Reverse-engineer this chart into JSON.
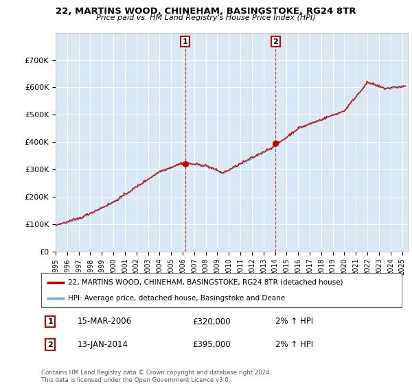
{
  "title1": "22, MARTINS WOOD, CHINEHAM, BASINGSTOKE, RG24 8TR",
  "title2": "Price paid vs. HM Land Registry's House Price Index (HPI)",
  "legend_line1": "22, MARTINS WOOD, CHINEHAM, BASINGSTOKE, RG24 8TR (detached house)",
  "legend_line2": "HPI: Average price, detached house, Basingstoke and Deane",
  "annotation1": {
    "num": "1",
    "date": "15-MAR-2006",
    "price": "£320,000",
    "hpi": "2% ↑ HPI"
  },
  "annotation2": {
    "num": "2",
    "date": "13-JAN-2014",
    "price": "£395,000",
    "hpi": "2% ↑ HPI"
  },
  "footer": "Contains HM Land Registry data © Crown copyright and database right 2024.\nThis data is licensed under the Open Government Licence v3.0.",
  "ylim": [
    0,
    800000
  ],
  "yticks": [
    0,
    100000,
    200000,
    300000,
    400000,
    500000,
    600000,
    700000
  ],
  "xlim_start": 1995,
  "xlim_end": 2025.5,
  "bg_color": "#d9e8f5",
  "line_color_red": "#cc0000",
  "line_color_blue": "#7aadcc",
  "marker_color": "#cc0000",
  "vline1_x": 2006.21,
  "vline2_x": 2014.04,
  "sale1_x": 2006.21,
  "sale1_y": 320000,
  "sale2_x": 2014.04,
  "sale2_y": 395000,
  "grid_color": "#ffffff",
  "title1_fontsize": 9.5,
  "title2_fontsize": 8.0
}
